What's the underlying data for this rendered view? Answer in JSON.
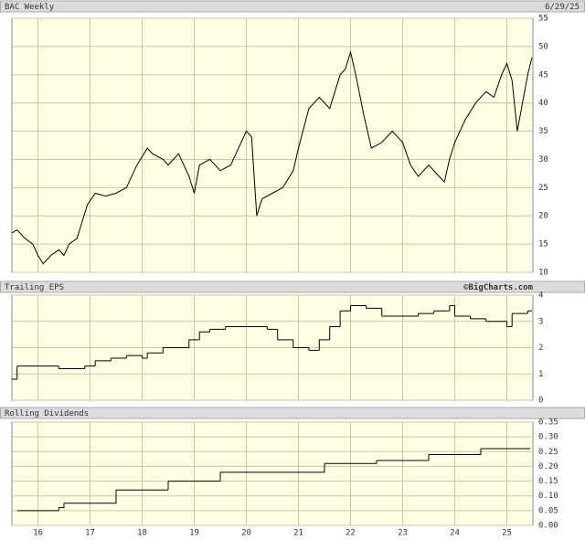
{
  "chart_data": [
    {
      "type": "line",
      "title": "BAC Weekly",
      "subtitle": "6/29/25",
      "color": "#000000",
      "grid": true,
      "xlim": [
        2015.5,
        2025.5
      ],
      "xticks": [
        2016,
        2017,
        2018,
        2019,
        2020,
        2021,
        2022,
        2023,
        2024,
        2025
      ],
      "ylim": [
        10,
        55
      ],
      "yticks": [
        10,
        15,
        20,
        25,
        30,
        35,
        40,
        45,
        50,
        55
      ],
      "x": [
        2015.5,
        2015.6,
        2015.75,
        2015.9,
        2016.0,
        2016.1,
        2016.25,
        2016.4,
        2016.5,
        2016.6,
        2016.75,
        2016.85,
        2016.95,
        2017.1,
        2017.3,
        2017.5,
        2017.7,
        2017.9,
        2018.1,
        2018.2,
        2018.4,
        2018.5,
        2018.7,
        2018.9,
        2019.0,
        2019.1,
        2019.3,
        2019.5,
        2019.7,
        2019.9,
        2020.0,
        2020.1,
        2020.2,
        2020.3,
        2020.5,
        2020.7,
        2020.9,
        2021.0,
        2021.2,
        2021.4,
        2021.6,
        2021.8,
        2021.9,
        2022.0,
        2022.1,
        2022.25,
        2022.4,
        2022.6,
        2022.8,
        2022.9,
        2023.0,
        2023.15,
        2023.3,
        2023.5,
        2023.7,
        2023.8,
        2023.9,
        2024.0,
        2024.2,
        2024.4,
        2024.6,
        2024.75,
        2024.9,
        2025.0,
        2025.1,
        2025.2,
        2025.3,
        2025.4,
        2025.48
      ],
      "values": [
        17,
        17.5,
        16,
        15,
        13,
        11.5,
        13,
        14,
        13,
        15,
        16,
        19,
        22,
        24,
        23.5,
        24,
        25,
        29,
        32,
        31,
        30,
        29,
        31,
        27,
        24,
        29,
        30,
        28,
        29,
        33,
        35,
        34,
        20,
        23,
        24,
        25,
        28,
        32,
        39,
        41,
        39,
        45,
        46,
        49,
        45,
        38,
        32,
        33,
        35,
        34,
        33,
        29,
        27,
        29,
        27,
        26,
        30,
        33,
        37,
        40,
        42,
        41,
        45,
        47,
        44,
        35,
        40,
        45,
        48
      ]
    },
    {
      "type": "step",
      "title": "Trailing EPS",
      "annotation": "©BigCharts.com",
      "color": "#000000",
      "grid": true,
      "xlim": [
        2015.5,
        2025.5
      ],
      "xticks": [
        2016,
        2017,
        2018,
        2019,
        2020,
        2021,
        2022,
        2023,
        2024,
        2025
      ],
      "ylim": [
        0,
        4
      ],
      "yticks": [
        0,
        1,
        2,
        3,
        4
      ],
      "x": [
        2015.5,
        2015.6,
        2016.4,
        2016.9,
        2017.1,
        2017.4,
        2017.7,
        2018.0,
        2018.1,
        2018.4,
        2018.9,
        2019.1,
        2019.3,
        2019.6,
        2020.4,
        2020.6,
        2020.9,
        2021.2,
        2021.4,
        2021.6,
        2021.8,
        2022.0,
        2022.3,
        2022.6,
        2023.0,
        2023.3,
        2023.6,
        2023.9,
        2024.0,
        2024.3,
        2024.6,
        2025.0,
        2025.1,
        2025.4,
        2025.48
      ],
      "values": [
        0.8,
        1.3,
        1.2,
        1.3,
        1.5,
        1.6,
        1.7,
        1.6,
        1.8,
        2.0,
        2.3,
        2.6,
        2.7,
        2.8,
        2.7,
        2.3,
        2.0,
        1.9,
        2.3,
        2.8,
        3.4,
        3.6,
        3.5,
        3.2,
        3.2,
        3.3,
        3.4,
        3.6,
        3.2,
        3.1,
        3.0,
        2.8,
        3.3,
        3.4,
        3.4
      ]
    },
    {
      "type": "step",
      "title": "Rolling Dividends",
      "color": "#000000",
      "grid": true,
      "xlim": [
        2015.5,
        2025.5
      ],
      "xticks": [
        {
          "value": 2016,
          "label": "16"
        },
        {
          "value": 2017,
          "label": "17"
        },
        {
          "value": 2018,
          "label": "18"
        },
        {
          "value": 2019,
          "label": "19"
        },
        {
          "value": 2020,
          "label": "20"
        },
        {
          "value": 2021,
          "label": "21"
        },
        {
          "value": 2022,
          "label": "22"
        },
        {
          "value": 2023,
          "label": "23"
        },
        {
          "value": 2024,
          "label": "24"
        },
        {
          "value": 2025,
          "label": "25"
        }
      ],
      "ylim": [
        0,
        0.35
      ],
      "yticks": [
        {
          "value": 0,
          "label": "0.00"
        },
        {
          "value": 0.05,
          "label": "0.05"
        },
        {
          "value": 0.1,
          "label": "0.10"
        },
        {
          "value": 0.15,
          "label": "0.15"
        },
        {
          "value": 0.2,
          "label": "0.20"
        },
        {
          "value": 0.25,
          "label": "0.25"
        },
        {
          "value": 0.3,
          "label": "0.30"
        },
        {
          "value": 0.35,
          "label": "0.35"
        }
      ],
      "x": [
        2015.6,
        2016.4,
        2016.5,
        2017.5,
        2018.5,
        2019.5,
        2021.5,
        2022.5,
        2023.5,
        2024.5,
        2025.45
      ],
      "values": [
        0.05,
        0.06,
        0.075,
        0.12,
        0.15,
        0.18,
        0.21,
        0.22,
        0.24,
        0.26,
        0.26
      ]
    }
  ]
}
